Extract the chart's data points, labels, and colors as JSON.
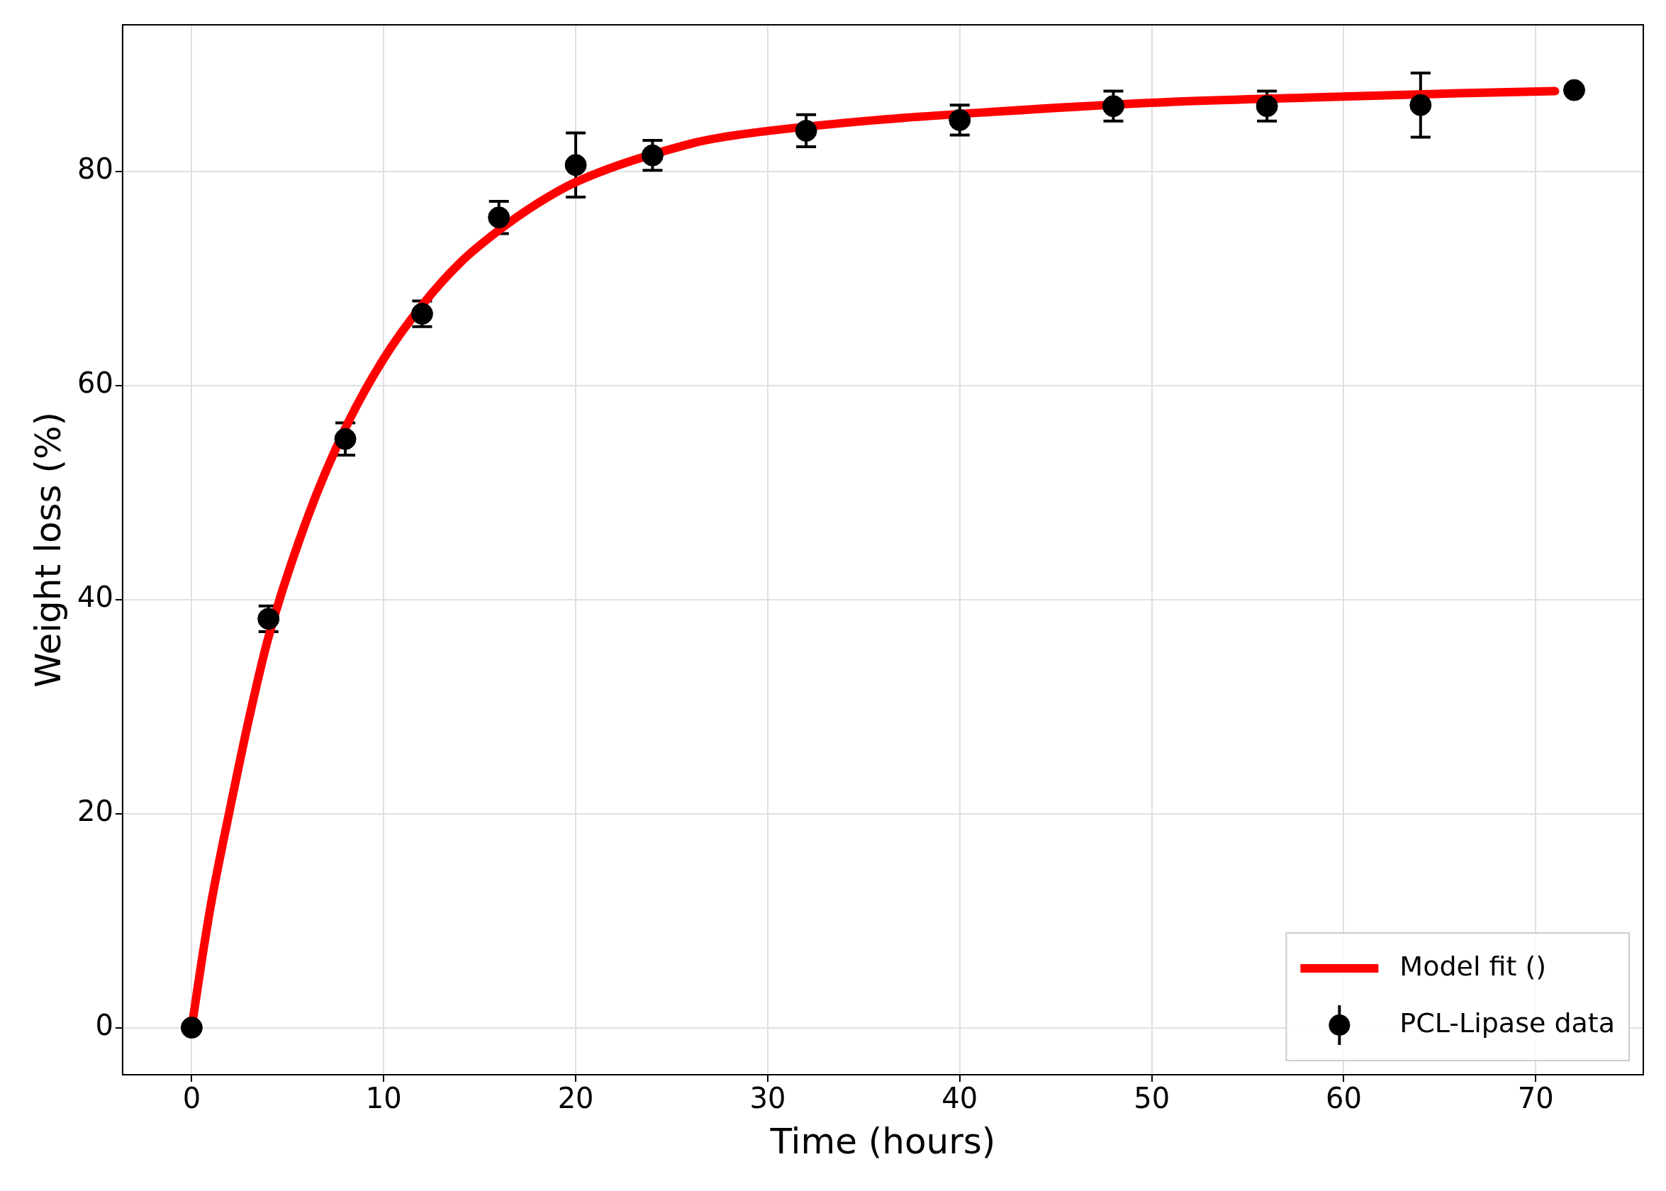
{
  "chart_data": {
    "type": "scatter",
    "xlabel": "Time (hours)",
    "ylabel": "Weight loss (%)",
    "xlim": [
      -3.6,
      75.6
    ],
    "xticks": [
      0,
      10,
      20,
      30,
      40,
      50,
      60,
      70
    ],
    "ylim": [
      -4.4,
      93.7
    ],
    "yticks": [
      0,
      20,
      40,
      60,
      80
    ],
    "grid": true,
    "legend": "bottom right",
    "series": [
      {
        "name": "Model fit ()",
        "type": "line",
        "color": "#ff0000",
        "line_style": "solid",
        "x": [
          0,
          0.5,
          1,
          2,
          3,
          4,
          6,
          8,
          10,
          12,
          14,
          16,
          18,
          20,
          26,
          28,
          35,
          42,
          51,
          58,
          66,
          71
        ],
        "values": [
          0,
          6,
          11.5,
          20.5,
          29,
          36.5,
          47.5,
          56,
          62.5,
          67.5,
          71.5,
          74.5,
          77,
          79,
          82.6,
          83.3,
          84.7,
          85.6,
          86.5,
          86.9,
          87.3,
          87.5
        ]
      },
      {
        "name": "PCL-Lipase data",
        "marker": "circle",
        "color": "#000000",
        "x": [
          0,
          4,
          8,
          12,
          16,
          20,
          24,
          32,
          40,
          48,
          56,
          64,
          72
        ],
        "values": [
          0,
          38.2,
          55.0,
          66.7,
          75.7,
          80.6,
          81.5,
          83.8,
          84.8,
          86.1,
          86.1,
          86.2,
          87.6
        ],
        "errors": [
          null,
          1.2,
          1.5,
          1.2,
          1.5,
          3.0,
          1.4,
          1.5,
          1.4,
          1.4,
          1.4,
          3.0,
          null
        ]
      }
    ]
  }
}
